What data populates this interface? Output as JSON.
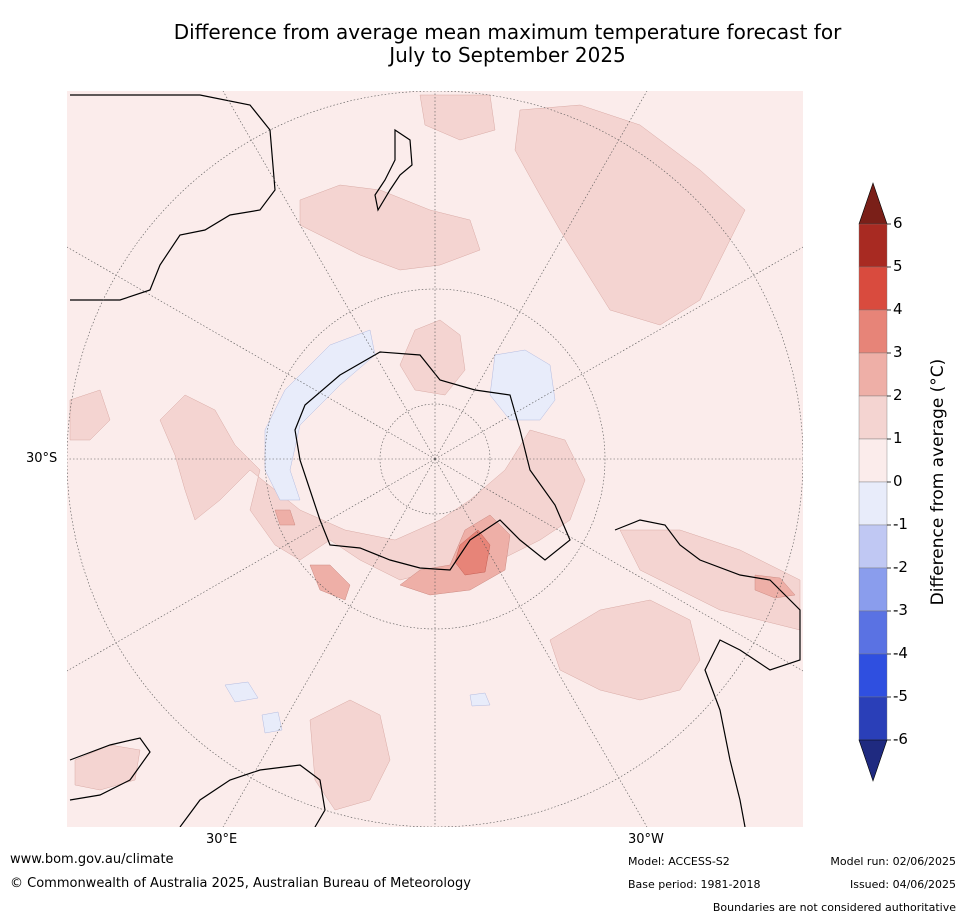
{
  "title_line1": "Difference from average mean maximum temperature forecast for",
  "title_line2": "July to September 2025",
  "map": {
    "projection": "south-polar",
    "lat_label": "30°S",
    "lon_labels": {
      "east": "30°E",
      "west": "30°W"
    }
  },
  "colorbar": {
    "title": "Difference from average (°C)",
    "ticks": [
      "6",
      "5",
      "4",
      "3",
      "2",
      "1",
      "0",
      "-1",
      "-2",
      "-3",
      "-4",
      "-5",
      "-6"
    ],
    "bins": [
      {
        "range": "5 to 6",
        "color": "#a82a22"
      },
      {
        "range": "4 to 5",
        "color": "#d94b3e"
      },
      {
        "range": "3 to 4",
        "color": "#e78478"
      },
      {
        "range": "2 to 3",
        "color": "#eeafa7"
      },
      {
        "range": "1 to 2",
        "color": "#f4d4d1"
      },
      {
        "range": "0 to 1",
        "color": "#fbeceb"
      },
      {
        "range": "-1 to 0",
        "color": "#e8ecfa"
      },
      {
        "range": "-2 to -1",
        "color": "#c0c8f3"
      },
      {
        "range": "-3 to -2",
        "color": "#8a9ded"
      },
      {
        "range": "-4 to -3",
        "color": "#5a72e3"
      },
      {
        "range": "-5 to -4",
        "color": "#2f4fe0"
      },
      {
        "range": "-6 to -5",
        "color": "#2a3fb8"
      }
    ],
    "over_color": "#7a1f18",
    "under_color": "#1f2a80"
  },
  "footer": {
    "website": "www.bom.gov.au/climate",
    "copyright": "© Commonwealth of Australia 2025, Australian Bureau of Meteorology",
    "model": "Model: ACCESS-S2",
    "base_period": "Base period: 1981-2018",
    "model_run": "Model run: 02/06/2025",
    "issued": "Issued: 04/06/2025",
    "disclaimer": "Boundaries are not considered authoritative"
  }
}
